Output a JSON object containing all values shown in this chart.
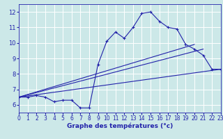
{
  "xlabel": "Graphe des températures (°c)",
  "xlim": [
    0,
    23
  ],
  "ylim": [
    5.5,
    12.5
  ],
  "yticks": [
    6,
    7,
    8,
    9,
    10,
    11,
    12
  ],
  "xticks": [
    0,
    1,
    2,
    3,
    4,
    5,
    6,
    7,
    8,
    9,
    10,
    11,
    12,
    13,
    14,
    15,
    16,
    17,
    18,
    19,
    20,
    21,
    22,
    23
  ],
  "background_color": "#cce8e8",
  "grid_color": "#ffffff",
  "line_color": "#2222aa",
  "line1_x": [
    0,
    1,
    2,
    3,
    4,
    5,
    6,
    7,
    8,
    9,
    10,
    11,
    12,
    13,
    14,
    15,
    16,
    17,
    18,
    19,
    20,
    21,
    22,
    23
  ],
  "line1_y": [
    6.5,
    6.5,
    6.6,
    6.5,
    6.2,
    6.3,
    6.3,
    5.8,
    5.8,
    8.6,
    10.1,
    10.7,
    10.3,
    11.0,
    11.9,
    12.0,
    11.4,
    11.0,
    10.9,
    9.9,
    9.6,
    9.2,
    8.3,
    8.3
  ],
  "line2_x": [
    0,
    23
  ],
  "line2_y": [
    6.5,
    8.3
  ],
  "line3_x": [
    0,
    21
  ],
  "line3_y": [
    6.5,
    9.6
  ],
  "line4_x": [
    0,
    20
  ],
  "line4_y": [
    6.5,
    9.9
  ],
  "tick_fontsize": 5.5,
  "xlabel_fontsize": 6.5
}
